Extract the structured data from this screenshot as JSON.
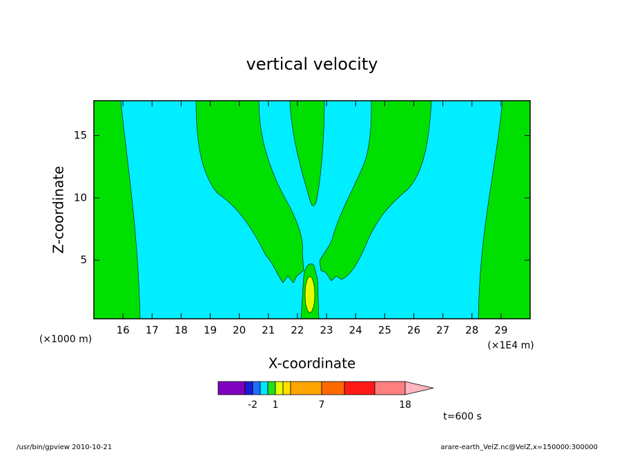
{
  "chart_data": {
    "type": "contour",
    "title": "vertical velocity",
    "x_label": "X-coordinate",
    "y_label": "Z-coordinate",
    "x_unit": "(×1E4 m)",
    "y_unit": "(×1000 m)",
    "xlim": [
      15,
      30
    ],
    "xticks": [
      16,
      17,
      18,
      19,
      20,
      21,
      22,
      23,
      24,
      25,
      26,
      27,
      28,
      29
    ],
    "ylim": [
      0.3,
      17.8
    ],
    "yticks": [
      5,
      10,
      15
    ],
    "colorbar": {
      "colors": [
        "#7f00bf",
        "#1c1cd6",
        "#1e6eff",
        "#00e5ff",
        "#20e020",
        "#e6ff00",
        "#ffe000",
        "#ffa500",
        "#ff6a00",
        "#ff1a1a",
        "#ff7f7f",
        "#ffb6c1"
      ],
      "ticks": [
        -2,
        1,
        7,
        18
      ]
    },
    "annotation": "t=600 s"
  },
  "footer": {
    "left": "/usr/bin/gpview  2010-10-21",
    "right": "arare-earth_VelZ.nc@VelZ,x=150000:300000"
  }
}
